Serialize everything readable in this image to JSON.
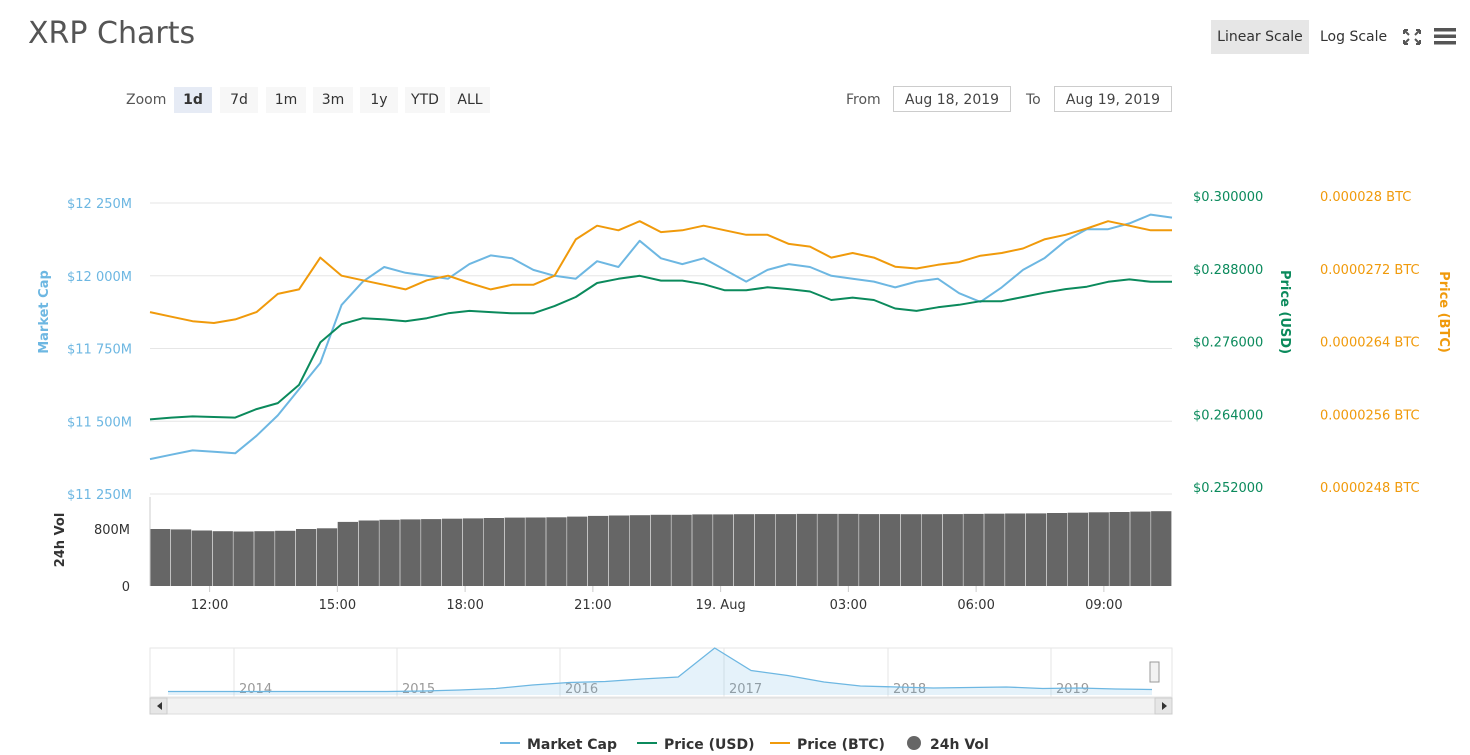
{
  "header": {
    "title": "XRP Charts"
  },
  "toolbar": {
    "linear_label": "Linear Scale",
    "log_label": "Log Scale",
    "fullscreen_icon": "fullscreen-icon",
    "menu_icon": "menu-icon"
  },
  "zoom": {
    "label": "Zoom",
    "buttons": [
      "1d",
      "7d",
      "1m",
      "3m",
      "1y",
      "YTD",
      "ALL"
    ],
    "active": "1d"
  },
  "range": {
    "from_label": "From",
    "from_value": "Aug 18, 2019",
    "to_label": "To",
    "to_value": "Aug 19, 2019"
  },
  "colors": {
    "market_cap": "#6db7e2",
    "price_usd": "#0b8a5c",
    "price_btc": "#f09a0b",
    "volume": "#666666"
  },
  "chart_data": {
    "type": "line",
    "x_ticks": [
      "12:00",
      "15:00",
      "18:00",
      "21:00",
      "19. Aug",
      "03:00",
      "06:00",
      "09:00"
    ],
    "axes": {
      "market_cap": {
        "label": "Market Cap",
        "ticks": [
          "$12 250M",
          "$12 000M",
          "$11 750M",
          "$11 500M",
          "$11 250M"
        ],
        "range": [
          11250,
          12250
        ]
      },
      "price_usd": {
        "label": "Price (USD)",
        "ticks": [
          "$0.300000",
          "$0.288000",
          "$0.276000",
          "$0.264000",
          "$0.252000"
        ],
        "range": [
          0.252,
          0.3
        ]
      },
      "price_btc": {
        "label": "Price (BTC)",
        "ticks": [
          "0.000028 BTC",
          "0.0000272 BTC",
          "0.0000264 BTC",
          "0.0000256 BTC",
          "0.0000248 BTC"
        ],
        "range": [
          2.48e-05,
          2.8e-05
        ]
      },
      "volume": {
        "label": "24h Vol",
        "ticks": [
          "800M",
          "0"
        ]
      }
    },
    "time_hours": [
      0,
      0.5,
      1,
      1.5,
      2,
      2.5,
      3,
      3.5,
      4,
      4.5,
      5,
      5.5,
      6,
      6.5,
      7,
      7.5,
      8,
      8.5,
      9,
      9.5,
      10,
      10.5,
      11,
      11.5,
      12,
      12.5,
      13,
      13.5,
      14,
      14.5,
      15,
      15.5,
      16,
      16.5,
      17,
      17.5,
      18,
      18.5,
      19,
      19.5,
      20,
      20.5,
      21,
      21.5,
      22,
      22.5,
      23,
      23.5,
      24
    ],
    "series": [
      {
        "name": "Market Cap",
        "unit": "M USD",
        "values": [
          11370,
          11385,
          11400,
          11395,
          11390,
          11450,
          11520,
          11610,
          11700,
          11900,
          11980,
          12030,
          12010,
          12000,
          11990,
          12040,
          12070,
          12060,
          12020,
          12000,
          11990,
          12050,
          12030,
          12120,
          12060,
          12040,
          12060,
          12020,
          11980,
          12020,
          12040,
          12030,
          12000,
          11990,
          11980,
          11960,
          11980,
          11990,
          11940,
          11910,
          11960,
          12020,
          12060,
          12120,
          12160,
          12160,
          12180,
          12210,
          12200
        ]
      },
      {
        "name": "Price (USD)",
        "unit": "USD",
        "values": [
          0.2643,
          0.2646,
          0.2648,
          0.2647,
          0.2646,
          0.266,
          0.267,
          0.27,
          0.277,
          0.28,
          0.281,
          0.2808,
          0.2805,
          0.281,
          0.2818,
          0.2822,
          0.282,
          0.2818,
          0.2818,
          0.283,
          0.2845,
          0.2868,
          0.2875,
          0.288,
          0.2872,
          0.2872,
          0.2866,
          0.2856,
          0.2856,
          0.2861,
          0.2858,
          0.2854,
          0.284,
          0.2844,
          0.284,
          0.2826,
          0.2822,
          0.2828,
          0.2832,
          0.2838,
          0.2838,
          0.2845,
          0.2852,
          0.2858,
          0.2862,
          0.287,
          0.2874,
          0.287,
          0.287
        ]
      },
      {
        "name": "Price (BTC)",
        "unit": "BTC",
        "values": [
          2.68e-05,
          2.675e-05,
          2.67e-05,
          2.668e-05,
          2.672e-05,
          2.68e-05,
          2.7e-05,
          2.705e-05,
          2.74e-05,
          2.72e-05,
          2.715e-05,
          2.71e-05,
          2.705e-05,
          2.715e-05,
          2.72e-05,
          2.712e-05,
          2.705e-05,
          2.71e-05,
          2.71e-05,
          2.72e-05,
          2.76e-05,
          2.775e-05,
          2.77e-05,
          2.78e-05,
          2.768e-05,
          2.77e-05,
          2.775e-05,
          2.77e-05,
          2.765e-05,
          2.765e-05,
          2.755e-05,
          2.752e-05,
          2.74e-05,
          2.745e-05,
          2.74e-05,
          2.73e-05,
          2.728e-05,
          2.732e-05,
          2.735e-05,
          2.742e-05,
          2.745e-05,
          2.75e-05,
          2.76e-05,
          2.765e-05,
          2.772e-05,
          2.78e-05,
          2.775e-05,
          2.77e-05,
          2.77e-05
        ]
      },
      {
        "name": "24h Vol",
        "unit": "USD",
        "values": [
          800,
          795,
          780,
          770,
          765,
          770,
          775,
          800,
          810,
          900,
          920,
          930,
          935,
          940,
          945,
          950,
          955,
          960,
          962,
          965,
          975,
          985,
          990,
          995,
          1000,
          1000,
          1005,
          1005,
          1008,
          1010,
          1010,
          1012,
          1012,
          1012,
          1010,
          1010,
          1008,
          1008,
          1010,
          1012,
          1015,
          1018,
          1020,
          1025,
          1030,
          1035,
          1040,
          1045,
          1050
        ]
      }
    ],
    "volume_ylim": [
      0,
      1250
    ],
    "navigator": {
      "x_ticks": [
        "2014",
        "2015",
        "2016",
        "2017",
        "2018",
        "2019"
      ],
      "values": [
        0.3,
        0.3,
        0.3,
        0.3,
        0.3,
        0.3,
        0.3,
        0.4,
        0.6,
        0.9,
        1.6,
        2.1,
        2.3,
        2.8,
        3.2,
        9.0,
        4.5,
        3.5,
        2.2,
        1.4,
        1.2,
        1.0,
        1.1,
        1.2,
        0.9,
        1.0,
        0.8,
        0.7
      ]
    },
    "legend": [
      {
        "name": "Market Cap",
        "symbol": "line"
      },
      {
        "name": "Price (USD)",
        "symbol": "line"
      },
      {
        "name": "Price (BTC)",
        "symbol": "line"
      },
      {
        "name": "24h Vol",
        "symbol": "circle"
      }
    ]
  }
}
